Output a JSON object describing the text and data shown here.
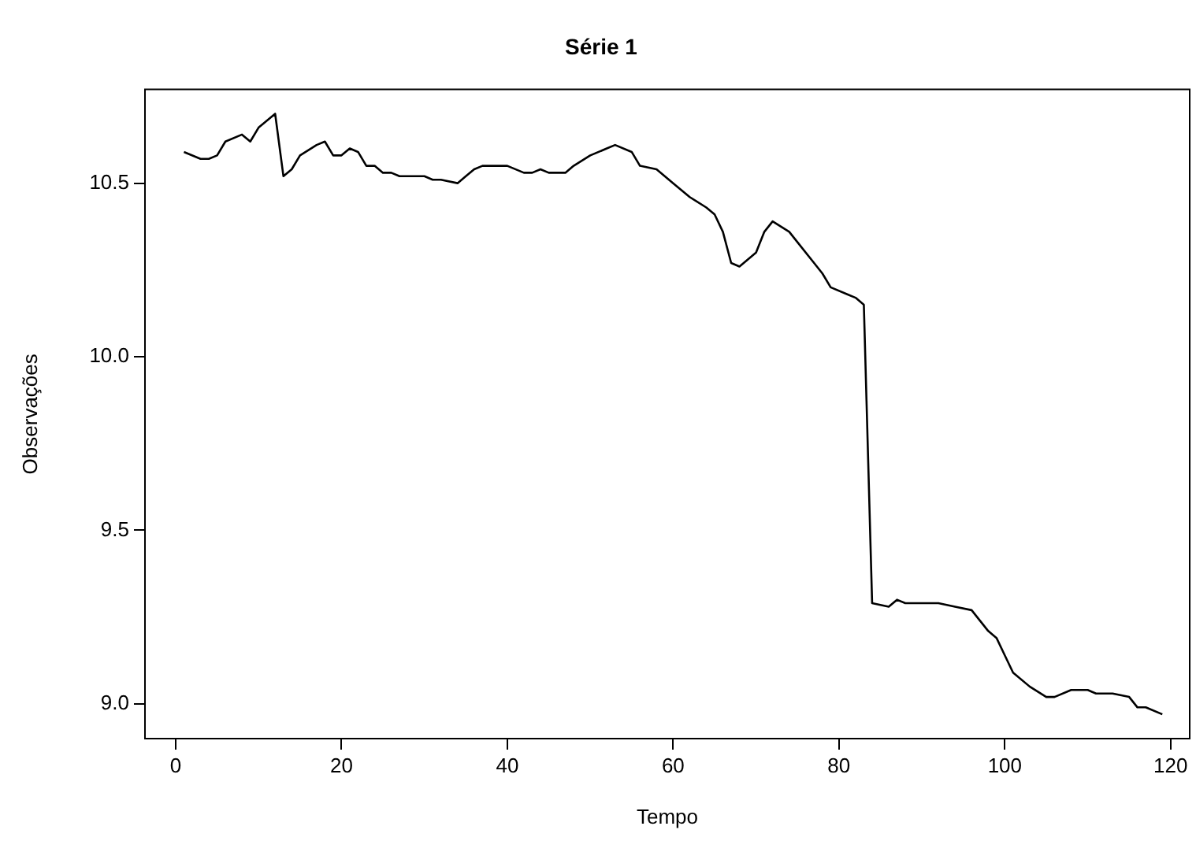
{
  "chart_data": {
    "type": "line",
    "title": "Série 1",
    "xlabel": "Tempo",
    "ylabel": "Observações",
    "x": [
      1,
      3,
      4,
      5,
      6,
      8,
      9,
      10,
      12,
      13,
      14,
      15,
      17,
      18,
      19,
      20,
      21,
      22,
      23,
      24,
      25,
      26,
      27,
      29,
      30,
      31,
      32,
      34,
      35,
      36,
      37,
      40,
      42,
      43,
      44,
      45,
      47,
      48,
      50,
      52,
      53,
      55,
      56,
      58,
      60,
      61,
      62,
      64,
      65,
      66,
      67,
      68,
      70,
      71,
      72,
      74,
      75,
      77,
      78,
      79,
      81,
      82,
      83,
      84,
      86,
      87,
      88,
      90,
      92,
      94,
      96,
      97,
      98,
      99,
      100,
      101,
      103,
      105,
      106,
      108,
      110,
      111,
      113,
      115,
      116,
      117,
      119
    ],
    "series": [
      {
        "color": "#000000",
        "values": [
          10.59,
          10.57,
          10.57,
          10.58,
          10.62,
          10.64,
          10.62,
          10.66,
          10.7,
          10.52,
          10.54,
          10.58,
          10.61,
          10.62,
          10.58,
          10.58,
          10.6,
          10.59,
          10.55,
          10.55,
          10.53,
          10.53,
          10.52,
          10.52,
          10.52,
          10.51,
          10.51,
          10.5,
          10.52,
          10.54,
          10.55,
          10.55,
          10.53,
          10.53,
          10.54,
          10.53,
          10.53,
          10.55,
          10.58,
          10.6,
          10.61,
          10.59,
          10.55,
          10.54,
          10.5,
          10.48,
          10.46,
          10.43,
          10.41,
          10.36,
          10.27,
          10.26,
          10.3,
          10.36,
          10.39,
          10.36,
          10.33,
          10.27,
          10.24,
          10.2,
          10.18,
          10.17,
          10.15,
          9.29,
          9.28,
          9.3,
          9.29,
          9.29,
          9.29,
          9.28,
          9.27,
          9.24,
          9.21,
          9.19,
          9.14,
          9.09,
          9.05,
          9.02,
          9.02,
          9.04,
          9.04,
          9.03,
          9.03,
          9.02,
          8.99,
          8.99,
          8.97
        ]
      }
    ],
    "xlim": [
      -3.7,
      122.3
    ],
    "xticks": [
      0,
      20,
      40,
      60,
      80,
      100,
      120
    ],
    "ylim": [
      8.9,
      10.77
    ],
    "yticks": [
      {
        "value": 9,
        "label": "9.0"
      },
      {
        "value": 9.5,
        "label": "9.5"
      },
      {
        "value": 10,
        "label": "10.0"
      },
      10.5
    ],
    "grid": false,
    "legend": false,
    "marker": "none",
    "line_style": "solid"
  }
}
